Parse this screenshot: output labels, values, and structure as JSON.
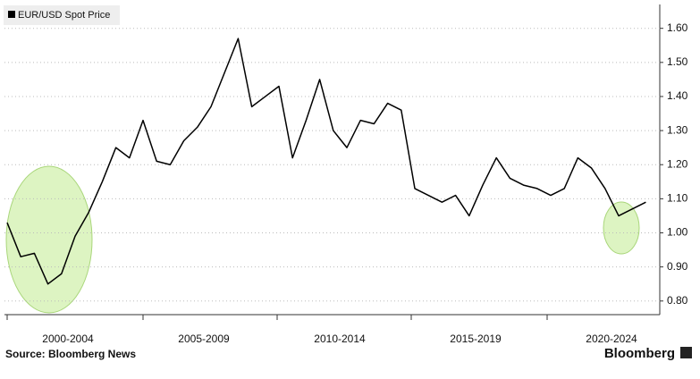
{
  "chart_data": {
    "type": "line",
    "source": "Source: Bloomberg News",
    "brand": "Bloomberg",
    "categories": [
      null,
      null,
      null,
      null,
      null,
      "2000-2004",
      null,
      null,
      null,
      null,
      null,
      null,
      null,
      null,
      null,
      "2005-2009",
      null,
      null,
      null,
      null,
      null,
      null,
      null,
      null,
      null,
      "2010-2014",
      null,
      null,
      null,
      null,
      null,
      null,
      null,
      null,
      null,
      "2015-2019",
      null,
      null,
      null,
      null,
      null,
      null,
      null,
      null,
      null,
      "2020-2024",
      null,
      null
    ],
    "series": [
      {
        "name": "EUR/USD Spot Price",
        "color": "#000000",
        "values": [
          1.03,
          0.93,
          0.94,
          0.85,
          0.88,
          0.99,
          1.06,
          1.15,
          1.25,
          1.22,
          1.33,
          1.21,
          1.2,
          1.27,
          1.31,
          1.37,
          1.47,
          1.57,
          1.37,
          1.4,
          1.43,
          1.22,
          1.33,
          1.45,
          1.3,
          1.25,
          1.33,
          1.32,
          1.38,
          1.36,
          1.13,
          1.11,
          1.09,
          1.11,
          1.05,
          1.14,
          1.22,
          1.16,
          1.14,
          1.13,
          1.11,
          1.13,
          1.22,
          1.19,
          1.13,
          1.05,
          1.07,
          1.09
        ]
      }
    ],
    "ylim": [
      0.76,
      1.67
    ],
    "yticks": [
      {
        "value": 0.8,
        "label": "0.80"
      },
      {
        "value": 0.9,
        "label": "0.90"
      },
      {
        "value": 1.0,
        "label": "1.00"
      },
      {
        "value": 1.1,
        "label": "1.10"
      },
      {
        "value": 1.2,
        "label": "1.20"
      },
      {
        "value": 1.3,
        "label": "1.30"
      },
      {
        "value": 1.4,
        "label": "1.40"
      },
      {
        "value": 1.5,
        "label": "1.50"
      },
      {
        "value": 1.6,
        "label": "1.60"
      }
    ],
    "grid": true
  }
}
